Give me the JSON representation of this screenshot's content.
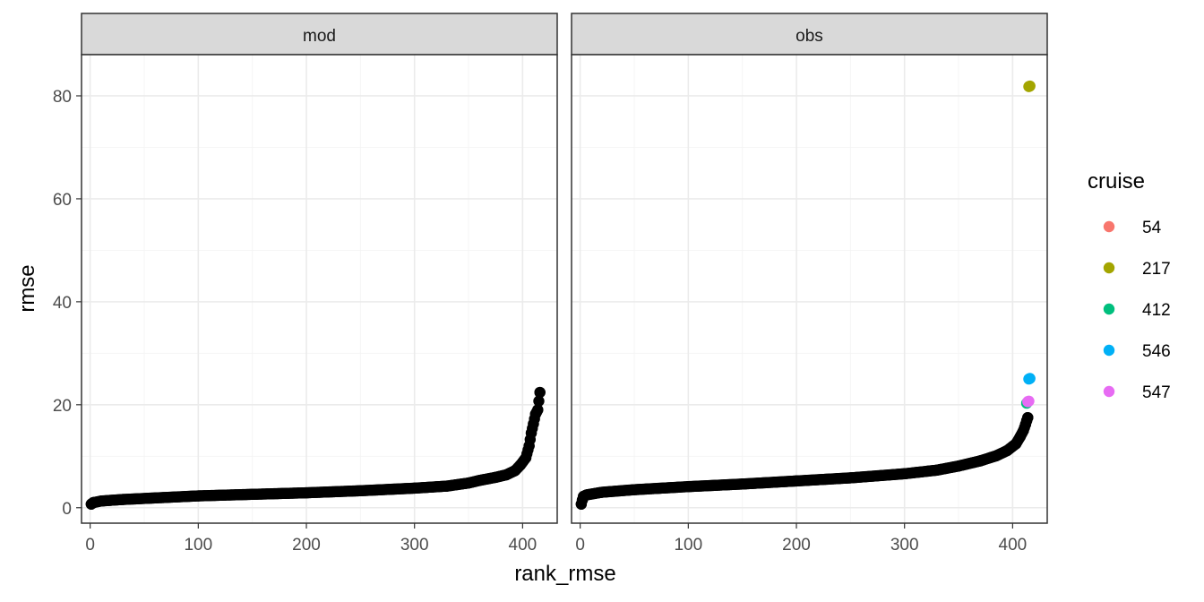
{
  "chart_data": {
    "type": "scatter",
    "xlabel": "rank_rmse",
    "ylabel": "rmse",
    "xlim": [
      -8,
      432
    ],
    "ylim": [
      -3,
      88
    ],
    "x_ticks": [
      0,
      100,
      200,
      300,
      400
    ],
    "y_ticks": [
      0,
      20,
      40,
      60,
      80
    ],
    "grid": true,
    "legend": {
      "title": "cruise",
      "position": "right",
      "entries": [
        {
          "label": "54",
          "color": "#f8766d"
        },
        {
          "label": "217",
          "color": "#a3a500"
        },
        {
          "label": "412",
          "color": "#00bf7d"
        },
        {
          "label": "546",
          "color": "#00b0f6"
        },
        {
          "label": "547",
          "color": "#e76bf3"
        }
      ]
    },
    "default_point_color": "#000000",
    "panels": [
      {
        "title": "mod",
        "curve": [
          [
            1,
            0.7
          ],
          [
            3,
            1.0
          ],
          [
            10,
            1.3
          ],
          [
            30,
            1.6
          ],
          [
            60,
            1.9
          ],
          [
            100,
            2.3
          ],
          [
            150,
            2.6
          ],
          [
            200,
            2.9
          ],
          [
            250,
            3.3
          ],
          [
            300,
            3.8
          ],
          [
            330,
            4.2
          ],
          [
            350,
            4.8
          ],
          [
            360,
            5.3
          ],
          [
            375,
            5.9
          ],
          [
            385,
            6.4
          ],
          [
            393,
            7.2
          ],
          [
            398,
            8.3
          ],
          [
            403,
            9.7
          ],
          [
            406,
            12.0
          ],
          [
            408,
            14.5
          ],
          [
            410,
            16.3
          ],
          [
            412,
            18.2
          ],
          [
            414,
            19.0
          ],
          [
            416,
            22.4
          ]
        ],
        "highlights": []
      },
      {
        "title": "obs",
        "curve": [
          [
            1,
            0.7
          ],
          [
            2,
            1.5
          ],
          [
            3,
            2.2
          ],
          [
            6,
            2.5
          ],
          [
            20,
            3.0
          ],
          [
            50,
            3.5
          ],
          [
            100,
            4.1
          ],
          [
            150,
            4.6
          ],
          [
            200,
            5.2
          ],
          [
            250,
            5.8
          ],
          [
            300,
            6.6
          ],
          [
            330,
            7.3
          ],
          [
            350,
            8.1
          ],
          [
            370,
            9.1
          ],
          [
            385,
            10.1
          ],
          [
            395,
            11.1
          ],
          [
            403,
            12.4
          ],
          [
            407,
            13.8
          ],
          [
            410,
            15.0
          ],
          [
            412,
            16.2
          ],
          [
            413,
            16.9
          ],
          [
            414,
            17.5
          ]
        ],
        "highlights": [
          {
            "cruise": "412",
            "x": 413,
            "y": 20.3
          },
          {
            "cruise": "547",
            "x": 414,
            "y": 20.6
          },
          {
            "cruise": "547",
            "x": 415,
            "y": 20.7
          },
          {
            "cruise": "546",
            "x": 415,
            "y": 25.0
          },
          {
            "cruise": "546",
            "x": 416,
            "y": 25.1
          },
          {
            "cruise": "217",
            "x": 415,
            "y": 81.8
          },
          {
            "cruise": "217",
            "x": 416,
            "y": 81.9
          }
        ]
      }
    ]
  }
}
